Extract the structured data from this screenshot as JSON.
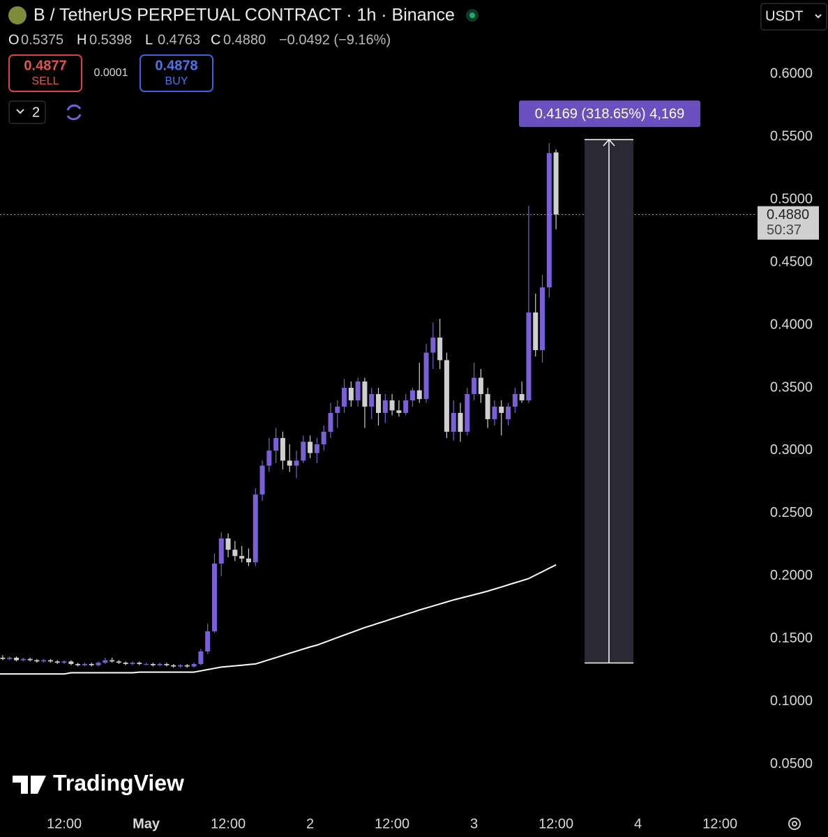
{
  "header": {
    "title": "B / TetherUS PERPETUAL CONTRACT · 1h · Binance",
    "ohlc": [
      {
        "key": "O",
        "value": "0.5375"
      },
      {
        "key": "H",
        "value": "0.5398"
      },
      {
        "key": "L",
        "value": "0.4763"
      },
      {
        "key": "C",
        "value": "0.4880"
      }
    ],
    "change": "−0.0492 (−9.16%)",
    "sell": {
      "price": "0.4877",
      "label": "SELL"
    },
    "spread": "0.0001",
    "buy": {
      "price": "0.4878",
      "label": "BUY"
    },
    "indicators": "2",
    "currency": "USDT"
  },
  "logo": "TradingView",
  "chart_data": {
    "type": "candlestick",
    "up_color": "#7a5fd6",
    "down_color": "#cfcfcf",
    "ma_color": "#ffffff",
    "open": [
      0.135,
      0.134,
      0.135,
      0.133,
      0.134,
      0.133,
      0.132,
      0.133,
      0.132,
      0.131,
      0.132,
      0.13,
      0.129,
      0.13,
      0.129,
      0.131,
      0.133,
      0.132,
      0.131,
      0.13,
      0.131,
      0.13,
      0.13,
      0.129,
      0.13,
      0.129,
      0.128,
      0.129,
      0.128,
      0.13,
      0.14,
      0.156,
      0.21,
      0.23,
      0.221,
      0.216,
      0.214,
      0.211,
      0.265,
      0.288,
      0.3,
      0.31,
      0.292,
      0.288,
      0.292,
      0.307,
      0.298,
      0.305,
      0.315,
      0.33,
      0.335,
      0.35,
      0.34,
      0.355,
      0.335,
      0.345,
      0.33,
      0.34,
      0.332,
      0.33,
      0.34,
      0.348,
      0.341,
      0.378,
      0.39,
      0.372,
      0.315,
      0.33,
      0.315,
      0.345,
      0.358,
      0.345,
      0.325,
      0.335,
      0.325,
      0.335,
      0.345,
      0.34,
      0.41,
      0.38,
      0.43,
      0.5375
    ],
    "high": [
      0.137,
      0.136,
      0.136,
      0.135,
      0.135,
      0.134,
      0.134,
      0.134,
      0.133,
      0.133,
      0.133,
      0.131,
      0.131,
      0.131,
      0.132,
      0.135,
      0.135,
      0.133,
      0.132,
      0.132,
      0.132,
      0.131,
      0.131,
      0.131,
      0.131,
      0.13,
      0.13,
      0.13,
      0.131,
      0.142,
      0.162,
      0.218,
      0.235,
      0.234,
      0.228,
      0.224,
      0.222,
      0.27,
      0.292,
      0.31,
      0.318,
      0.315,
      0.305,
      0.3,
      0.312,
      0.312,
      0.31,
      0.32,
      0.338,
      0.34,
      0.357,
      0.355,
      0.358,
      0.358,
      0.35,
      0.35,
      0.345,
      0.345,
      0.34,
      0.345,
      0.35,
      0.37,
      0.385,
      0.402,
      0.405,
      0.378,
      0.34,
      0.338,
      0.35,
      0.37,
      0.365,
      0.35,
      0.34,
      0.34,
      0.338,
      0.35,
      0.355,
      0.495,
      0.425,
      0.44,
      0.545,
      0.5398
    ],
    "low": [
      0.133,
      0.133,
      0.132,
      0.132,
      0.132,
      0.131,
      0.131,
      0.131,
      0.13,
      0.13,
      0.129,
      0.128,
      0.128,
      0.128,
      0.128,
      0.13,
      0.131,
      0.13,
      0.129,
      0.129,
      0.129,
      0.129,
      0.128,
      0.128,
      0.128,
      0.127,
      0.127,
      0.127,
      0.127,
      0.129,
      0.138,
      0.155,
      0.2,
      0.215,
      0.212,
      0.211,
      0.208,
      0.208,
      0.26,
      0.283,
      0.29,
      0.285,
      0.283,
      0.278,
      0.29,
      0.294,
      0.29,
      0.3,
      0.31,
      0.318,
      0.33,
      0.335,
      0.335,
      0.318,
      0.325,
      0.32,
      0.322,
      0.328,
      0.327,
      0.328,
      0.335,
      0.338,
      0.338,
      0.365,
      0.365,
      0.31,
      0.308,
      0.307,
      0.312,
      0.34,
      0.338,
      0.318,
      0.32,
      0.312,
      0.32,
      0.33,
      0.338,
      0.338,
      0.375,
      0.37,
      0.422,
      0.4763
    ],
    "close": [
      0.134,
      0.135,
      0.133,
      0.134,
      0.133,
      0.132,
      0.133,
      0.132,
      0.131,
      0.132,
      0.13,
      0.129,
      0.13,
      0.129,
      0.131,
      0.133,
      0.132,
      0.131,
      0.13,
      0.131,
      0.13,
      0.13,
      0.129,
      0.13,
      0.129,
      0.128,
      0.129,
      0.128,
      0.13,
      0.14,
      0.156,
      0.21,
      0.23,
      0.221,
      0.216,
      0.214,
      0.211,
      0.265,
      0.288,
      0.3,
      0.31,
      0.292,
      0.288,
      0.292,
      0.307,
      0.298,
      0.305,
      0.315,
      0.33,
      0.335,
      0.35,
      0.34,
      0.355,
      0.335,
      0.345,
      0.33,
      0.34,
      0.332,
      0.33,
      0.34,
      0.348,
      0.341,
      0.378,
      0.39,
      0.372,
      0.315,
      0.33,
      0.315,
      0.345,
      0.358,
      0.345,
      0.325,
      0.335,
      0.33,
      0.335,
      0.345,
      0.34,
      0.41,
      0.38,
      0.43,
      0.537,
      0.488
    ],
    "ma": [
      0.122,
      0.122,
      0.122,
      0.122,
      0.122,
      0.122,
      0.122,
      0.122,
      0.122,
      0.122,
      0.123,
      0.123,
      0.123,
      0.123,
      0.123,
      0.123,
      0.123,
      0.123,
      0.123,
      0.123,
      0.1235,
      0.1235,
      0.1235,
      0.1235,
      0.1235,
      0.1235,
      0.1235,
      0.1235,
      0.1235,
      0.1245,
      0.1255,
      0.1265,
      0.1275,
      0.128,
      0.1285,
      0.129,
      0.1295,
      0.13,
      0.1317,
      0.1334,
      0.1351,
      0.1368,
      0.1385,
      0.1402,
      0.1419,
      0.1436,
      0.145,
      0.147,
      0.149,
      0.151,
      0.153,
      0.155,
      0.157,
      0.159,
      0.1607,
      0.1625,
      0.1642,
      0.166,
      0.1677,
      0.1695,
      0.1712,
      0.173,
      0.1746,
      0.1762,
      0.1778,
      0.1794,
      0.181,
      0.1824,
      0.1838,
      0.1852,
      0.1866,
      0.188,
      0.1897,
      0.1913,
      0.193,
      0.1947,
      0.1963,
      0.198,
      0.2008,
      0.2035,
      0.2063,
      0.209
    ],
    "xlim": [
      -0.4,
      110.4
    ],
    "xticks": [
      {
        "value": 9,
        "label": "12:00"
      },
      {
        "value": 21,
        "label": "May"
      },
      {
        "value": 33,
        "label": "12:00"
      },
      {
        "value": 45,
        "label": "2"
      },
      {
        "value": 57,
        "label": "12:00"
      },
      {
        "value": 69,
        "label": "3"
      },
      {
        "value": 81,
        "label": "12:00"
      },
      {
        "value": 93,
        "label": "4"
      },
      {
        "value": 105,
        "label": "12:00"
      }
    ],
    "ylim": [
      0.0144,
      0.6589
    ],
    "yticks": [
      {
        "value": 0.05,
        "label": "0.0500"
      },
      {
        "value": 0.1,
        "label": "0.1000"
      },
      {
        "value": 0.15,
        "label": "0.1500"
      },
      {
        "value": 0.2,
        "label": "0.2000"
      },
      {
        "value": 0.25,
        "label": "0.2500"
      },
      {
        "value": 0.3,
        "label": "0.3000"
      },
      {
        "value": 0.35,
        "label": "0.3500"
      },
      {
        "value": 0.4,
        "label": "0.4000"
      },
      {
        "value": 0.45,
        "label": "0.4500"
      },
      {
        "value": 0.5,
        "label": "0.5000"
      },
      {
        "value": 0.55,
        "label": "0.5500"
      },
      {
        "value": 0.6,
        "label": "0.6000"
      }
    ],
    "grid": false,
    "last_price": {
      "value": 0.488,
      "label": "0.4880"
    },
    "countdown": "50:37",
    "measure": {
      "from": 0.1308,
      "to": 0.5477,
      "label": "0.4169 (318.65%) 4,169"
    }
  }
}
